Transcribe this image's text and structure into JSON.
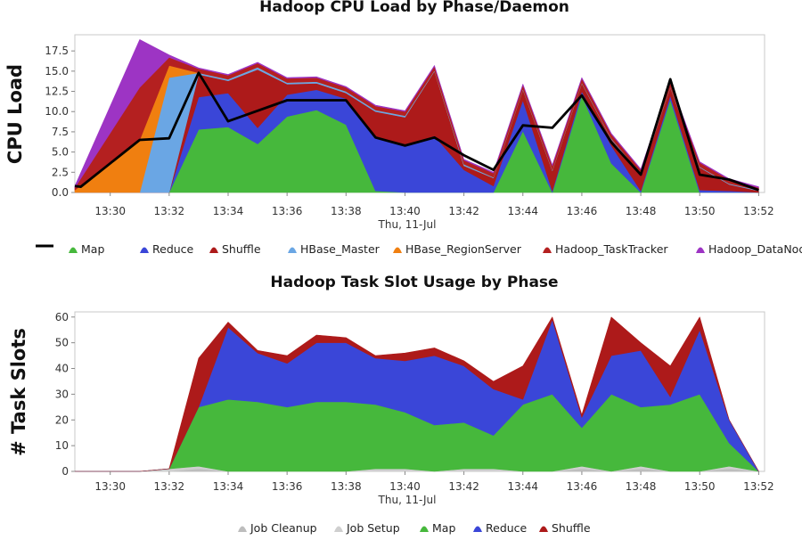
{
  "chart_data": [
    {
      "type": "area",
      "stacked": true,
      "title": "Hadoop CPU Load by Phase/Daemon",
      "ylabel": "CPU Load",
      "xlabel": "Thu, 11-Jul",
      "ylim": [
        0,
        19.5
      ],
      "yticks": [
        0.0,
        2.5,
        5.0,
        7.5,
        10.0,
        12.5,
        15.0,
        17.5
      ],
      "ytick_labels": [
        "0.0",
        "2.5",
        "5.0",
        "7.5",
        "10.0",
        "12.5",
        "15.0",
        "17.5"
      ],
      "xlim": [
        "12:29 (approx)",
        "13:52 (approx)"
      ],
      "xticks": [
        "13:30",
        "13:32",
        "13:34",
        "13:36",
        "13:38",
        "13:40",
        "13:42",
        "13:44",
        "13:46",
        "13:48",
        "13:50",
        "13:52"
      ],
      "grid": false,
      "legend_position": "bottom",
      "x": [
        "13:28.8",
        "13:31",
        "13:32",
        "13:33",
        "13:34",
        "13:35",
        "13:36",
        "13:37",
        "13:38",
        "13:39",
        "13:40",
        "13:41",
        "13:42",
        "13:43",
        "13:44",
        "13:45",
        "13:46",
        "13:47",
        "13:48",
        "13:49",
        "13:50",
        "13:51",
        "13:52"
      ],
      "series": [
        {
          "name": "Map",
          "color": "#46b83c",
          "values": [
            0,
            0,
            0,
            7.8,
            8.1,
            6.0,
            9.4,
            10.2,
            8.4,
            0.2,
            0,
            0,
            0,
            0,
            7.6,
            0,
            12,
            3.6,
            0,
            11.5,
            0,
            0,
            0
          ]
        },
        {
          "name": "Reduce",
          "color": "#3a46d8",
          "values": [
            0,
            0,
            0,
            4.0,
            4.2,
            2.0,
            2.7,
            2.5,
            3.2,
            6.5,
            5.8,
            7.0,
            2.8,
            0.8,
            3.8,
            0.2,
            0.5,
            2.2,
            0.2,
            0.5,
            0.3,
            0.2,
            0
          ]
        },
        {
          "name": "Shuffle",
          "color": "#ad1a1a",
          "values": [
            0,
            0,
            0,
            2.8,
            1.5,
            7.2,
            1.3,
            0.8,
            0.7,
            3.3,
            3.5,
            8.0,
            0.5,
            1.0,
            1.3,
            2.5,
            1.0,
            0.8,
            2.0,
            1.0,
            2.8,
            0.8,
            0.2
          ]
        },
        {
          "name": "HBase_Master",
          "color": "#6aa6e4",
          "values": [
            0,
            0,
            14.2,
            0.2,
            0.2,
            0.3,
            0.2,
            0.2,
            0.2,
            0.2,
            0.2,
            0.1,
            0.2,
            0.1,
            0.1,
            0.1,
            0.1,
            0.1,
            0.1,
            0.1,
            0.1,
            0.1,
            0.1
          ]
        },
        {
          "name": "HBase_RegionServer",
          "color": "#f07f10",
          "values": [
            0.3,
            6.5,
            1.5,
            0,
            0,
            0,
            0,
            0,
            0,
            0,
            0,
            0,
            0,
            0,
            0,
            0,
            0,
            0,
            0,
            0,
            0,
            0,
            0
          ]
        },
        {
          "name": "Hadoop_TaskTracker",
          "color": "#b42020",
          "values": [
            0.3,
            6.5,
            1.0,
            0.5,
            0.5,
            0.5,
            0.5,
            0.5,
            0.5,
            0.5,
            0.5,
            0.5,
            0.5,
            0.5,
            0.5,
            0.5,
            0.5,
            0.5,
            0.5,
            0.5,
            0.5,
            0.5,
            0.3
          ]
        },
        {
          "name": "Hadoop_DataNode",
          "color": "#9d34c4",
          "values": [
            0.2,
            5.9,
            0.3,
            0.1,
            0.1,
            0.1,
            0.1,
            0.1,
            0.1,
            0.1,
            0.1,
            0.1,
            0.1,
            0.1,
            0.1,
            0.1,
            0.1,
            0.1,
            0.1,
            0.1,
            0.1,
            0.1,
            0.1
          ]
        }
      ],
      "line_series": {
        "name": "",
        "color": "#000000",
        "x": [
          "13:28.8",
          "13:29",
          "13:31",
          "13:32",
          "13:33",
          "13:34",
          "13:36",
          "13:38",
          "13:39",
          "13:40",
          "13:41",
          "13:42",
          "13:43",
          "13:44",
          "13:45",
          "13:46",
          "13:47",
          "13:48",
          "13:49",
          "13:50",
          "13:51",
          "13:52"
        ],
        "values": [
          0.8,
          0.7,
          6.5,
          6.7,
          14.8,
          8.8,
          11.4,
          11.4,
          6.8,
          5.8,
          6.8,
          4.6,
          2.8,
          8.3,
          8.0,
          12.0,
          6.2,
          2.2,
          14.0,
          2.2,
          1.6,
          0.3
        ]
      }
    },
    {
      "type": "area",
      "stacked": true,
      "title": "Hadoop Task Slot Usage by Phase",
      "ylabel": "# Task Slots",
      "xlabel": "Thu, 11-Jul",
      "ylim": [
        0,
        62
      ],
      "yticks": [
        0,
        10,
        20,
        30,
        40,
        50,
        60
      ],
      "ytick_labels": [
        "0",
        "10",
        "20",
        "30",
        "40",
        "50",
        "60"
      ],
      "xlim": [
        "12:29 (approx)",
        "13:52 (approx)"
      ],
      "xticks": [
        "13:30",
        "13:32",
        "13:34",
        "13:36",
        "13:38",
        "13:40",
        "13:42",
        "13:44",
        "13:46",
        "13:48",
        "13:50",
        "13:52"
      ],
      "grid": false,
      "legend_position": "bottom",
      "x": [
        "13:28.8",
        "13:30",
        "13:31",
        "13:32",
        "13:33",
        "13:34",
        "13:35",
        "13:36",
        "13:37",
        "13:38",
        "13:39",
        "13:40",
        "13:41",
        "13:42",
        "13:43",
        "13:44",
        "13:45",
        "13:46",
        "13:47",
        "13:48",
        "13:49",
        "13:50",
        "13:51",
        "13:52"
      ],
      "series": [
        {
          "name": "Job Cleanup",
          "color": "#bdbdbd",
          "values": [
            0,
            0,
            0,
            0,
            1,
            0,
            0,
            0,
            0,
            0,
            0,
            0,
            0,
            0,
            0,
            0,
            0,
            1,
            0,
            1,
            0,
            0,
            1,
            0
          ]
        },
        {
          "name": "Job Setup",
          "color": "#cfcfcf",
          "values": [
            0,
            0,
            0,
            1,
            1,
            0,
            0,
            0,
            0,
            0,
            1,
            1,
            0,
            1,
            1,
            0,
            0,
            1,
            0,
            1,
            0,
            0,
            1,
            0
          ]
        },
        {
          "name": "Map",
          "color": "#46b83c",
          "values": [
            0,
            0,
            0,
            0,
            23,
            28,
            27,
            25,
            27,
            27,
            25,
            22,
            18,
            18,
            13,
            26,
            30,
            15,
            30,
            23,
            26,
            30,
            9,
            0
          ]
        },
        {
          "name": "Reduce",
          "color": "#3a46d8",
          "values": [
            0,
            0,
            0,
            0,
            0,
            28,
            19,
            17,
            23,
            23,
            18,
            20,
            27,
            22,
            18,
            2,
            29,
            4,
            15,
            22,
            3,
            25,
            9,
            0
          ]
        },
        {
          "name": "Shuffle",
          "color": "#ad1a1a",
          "values": [
            0,
            0,
            0,
            0,
            19,
            2,
            1,
            3,
            3,
            2,
            1,
            3,
            3,
            2,
            3,
            13,
            1,
            1,
            15,
            3,
            12,
            5,
            0,
            0
          ]
        }
      ]
    }
  ]
}
